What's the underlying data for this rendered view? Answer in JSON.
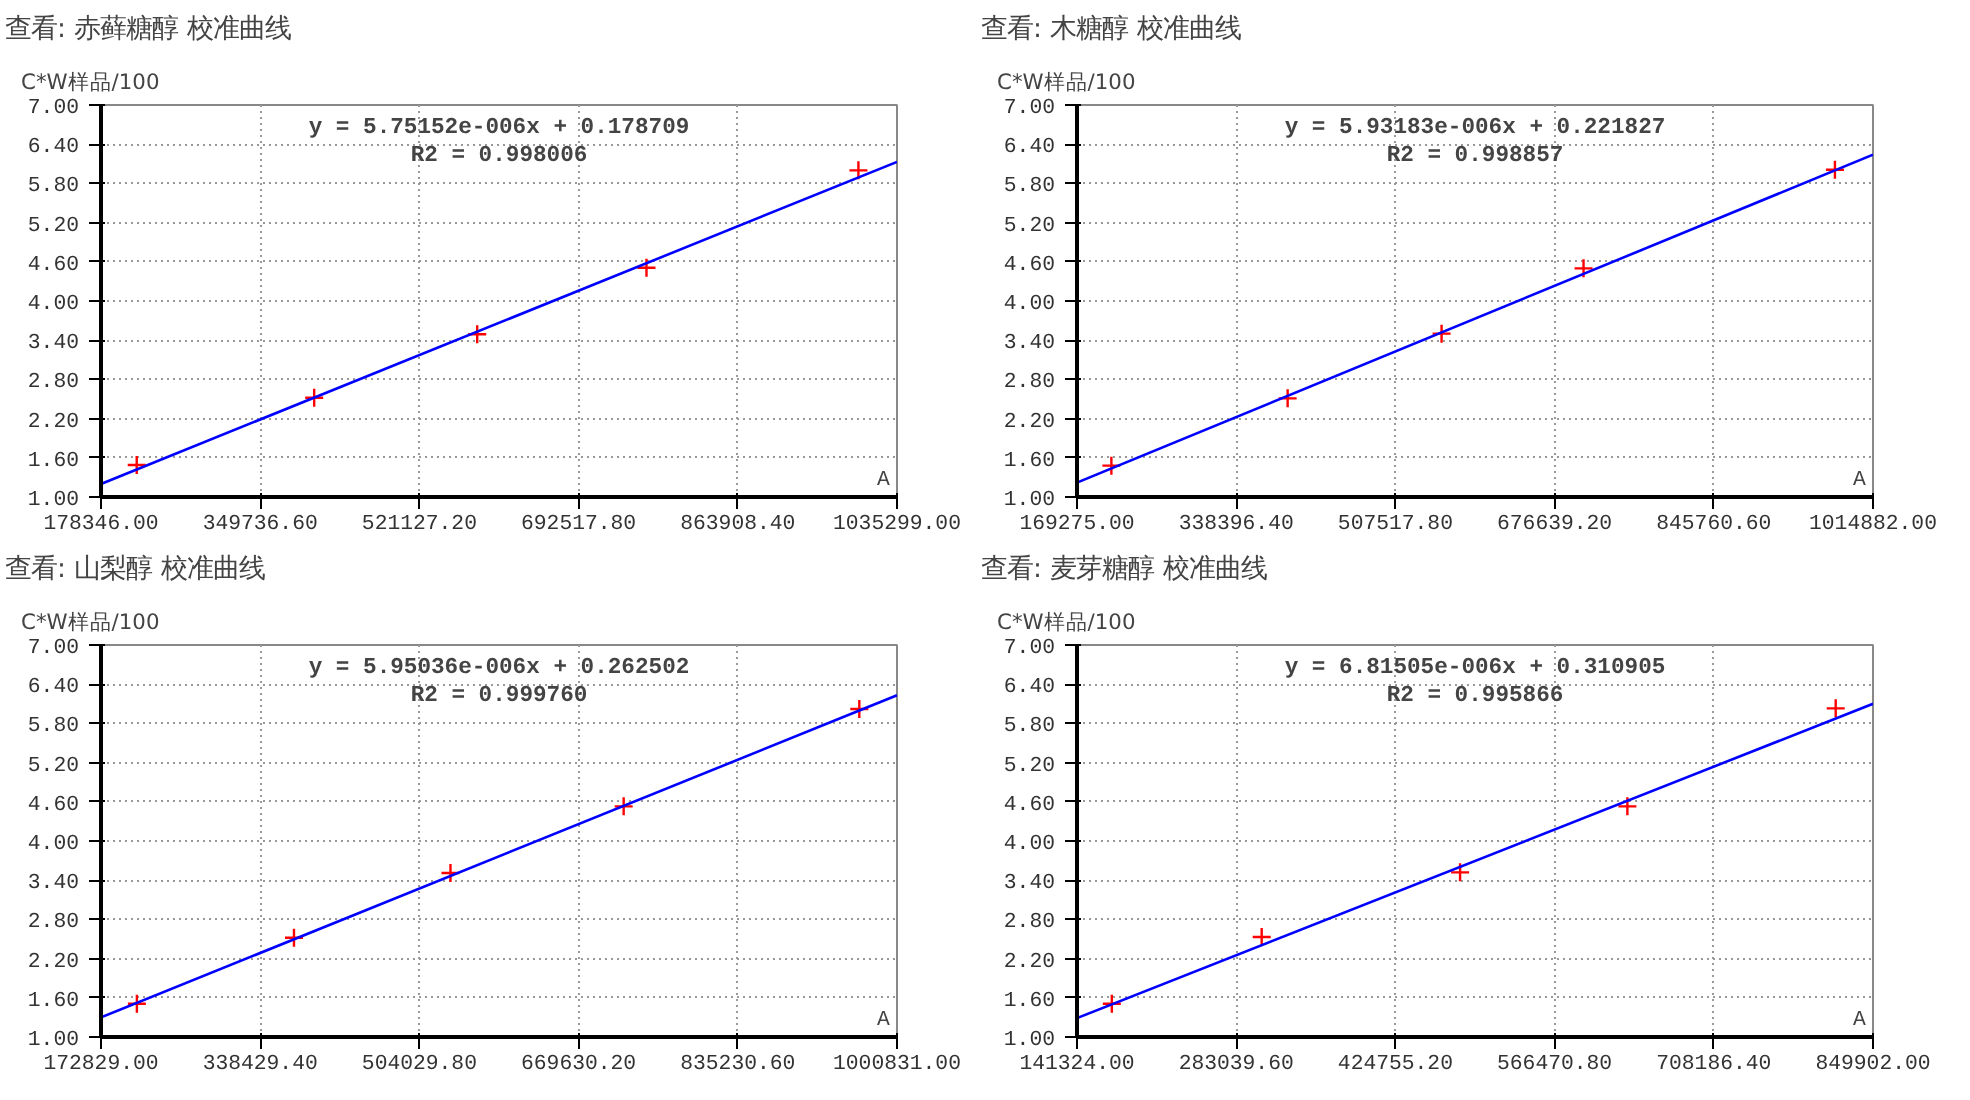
{
  "chart_data": [
    {
      "type": "scatter",
      "title": "查看: 赤藓糖醇 校准曲线",
      "ylabel": "C*W样品/100",
      "xlabel": "A",
      "annotations": [
        "y = 5.75152e-006x + 0.178709",
        "R2 = 0.998006"
      ],
      "marker": "cross",
      "grid": true,
      "xlim": [
        178346,
        1035299
      ],
      "ylim": [
        1,
        7
      ],
      "xticks": [
        {
          "value": 178346,
          "label": "178346.00"
        },
        {
          "value": 349736.6,
          "label": "349736.60"
        },
        {
          "value": 521127.2,
          "label": "521127.20"
        },
        {
          "value": 692517.8,
          "label": "692517.80"
        },
        {
          "value": 863908.4,
          "label": "863908.40"
        },
        {
          "value": 1035299,
          "label": "1035299.00"
        }
      ],
      "yticks": [
        {
          "value": 1,
          "label": "1.00"
        },
        {
          "value": 1.6,
          "label": "1.60"
        },
        {
          "value": 2.2,
          "label": "2.20"
        },
        {
          "value": 2.8,
          "label": "2.80"
        },
        {
          "value": 3.4,
          "label": "3.40"
        },
        {
          "value": 4,
          "label": "4.00"
        },
        {
          "value": 4.6,
          "label": "4.60"
        },
        {
          "value": 5.2,
          "label": "5.20"
        },
        {
          "value": 5.8,
          "label": "5.80"
        },
        {
          "value": 6.4,
          "label": "6.40"
        },
        {
          "value": 7,
          "label": "7.00"
        }
      ],
      "series": [
        {
          "color": "#ff0000",
          "x": [
            216800,
            407850,
            583350,
            765600,
            993750
          ],
          "values": [
            1.49,
            2.52,
            3.49,
            4.51,
            6.0
          ]
        },
        {
          "type": "line",
          "color": "#0000ff",
          "marker": "none",
          "x": [
            178346,
            1035299
          ],
          "values": [
            1.2,
            6.13
          ]
        }
      ]
    },
    {
      "type": "scatter",
      "title": "查看: 木糖醇 校准曲线",
      "ylabel": "C*W样品/100",
      "xlabel": "A",
      "annotations": [
        "y = 5.93183e-006x + 0.221827",
        "R2 = 0.998857"
      ],
      "marker": "cross",
      "grid": true,
      "xlim": [
        169275,
        1014882
      ],
      "ylim": [
        1,
        7
      ],
      "xticks": [
        {
          "value": 169275,
          "label": "169275.00"
        },
        {
          "value": 338396.4,
          "label": "338396.40"
        },
        {
          "value": 507517.8,
          "label": "507517.80"
        },
        {
          "value": 676639.2,
          "label": "676639.20"
        },
        {
          "value": 845760.6,
          "label": "845760.60"
        },
        {
          "value": 1014882,
          "label": "1014882.00"
        }
      ],
      "yticks": [
        {
          "value": 1,
          "label": "1.00"
        },
        {
          "value": 1.6,
          "label": "1.60"
        },
        {
          "value": 2.2,
          "label": "2.20"
        },
        {
          "value": 2.8,
          "label": "2.80"
        },
        {
          "value": 3.4,
          "label": "3.40"
        },
        {
          "value": 4,
          "label": "4.00"
        },
        {
          "value": 4.6,
          "label": "4.60"
        },
        {
          "value": 5.2,
          "label": "5.20"
        },
        {
          "value": 5.8,
          "label": "5.80"
        },
        {
          "value": 6.4,
          "label": "6.40"
        },
        {
          "value": 7,
          "label": "7.00"
        }
      ],
      "series": [
        {
          "color": "#ff0000",
          "x": [
            205800,
            393040,
            556580,
            707380,
            974440
          ],
          "values": [
            1.48,
            2.51,
            3.5,
            4.5,
            6.01
          ]
        },
        {
          "type": "line",
          "color": "#0000ff",
          "marker": "none",
          "x": [
            169275,
            1014882
          ],
          "values": [
            1.22,
            6.24
          ]
        }
      ]
    },
    {
      "type": "scatter",
      "title": "查看: 山梨醇 校准曲线",
      "ylabel": "C*W样品/100",
      "xlabel": "A",
      "annotations": [
        "y = 5.95036e-006x + 0.262502",
        "R2 = 0.999760"
      ],
      "marker": "cross",
      "grid": true,
      "xlim": [
        172829,
        1000831
      ],
      "ylim": [
        1,
        7
      ],
      "xticks": [
        {
          "value": 172829,
          "label": "172829.00"
        },
        {
          "value": 338429.4,
          "label": "338429.40"
        },
        {
          "value": 504029.8,
          "label": "504029.80"
        },
        {
          "value": 669630.2,
          "label": "669630.20"
        },
        {
          "value": 835230.6,
          "label": "835230.60"
        },
        {
          "value": 1000831,
          "label": "1000831.00"
        }
      ],
      "yticks": [
        {
          "value": 1,
          "label": "1.00"
        },
        {
          "value": 1.6,
          "label": "1.60"
        },
        {
          "value": 2.2,
          "label": "2.20"
        },
        {
          "value": 2.8,
          "label": "2.80"
        },
        {
          "value": 3.4,
          "label": "3.40"
        },
        {
          "value": 4,
          "label": "4.00"
        },
        {
          "value": 4.6,
          "label": "4.60"
        },
        {
          "value": 5.2,
          "label": "5.20"
        },
        {
          "value": 5.8,
          "label": "5.80"
        },
        {
          "value": 6.4,
          "label": "6.40"
        },
        {
          "value": 7,
          "label": "7.00"
        }
      ],
      "series": [
        {
          "color": "#ff0000",
          "x": [
            210150,
            373570,
            536350,
            716500,
            961630
          ],
          "values": [
            1.51,
            2.52,
            3.51,
            4.53,
            6.02
          ]
        },
        {
          "type": "line",
          "color": "#0000ff",
          "marker": "none",
          "x": [
            172829,
            1000831
          ],
          "values": [
            1.3,
            6.23
          ]
        }
      ]
    },
    {
      "type": "scatter",
      "title": "查看: 麦芽糖醇 校准曲线",
      "ylabel": "C*W样品/100",
      "xlabel": "A",
      "annotations": [
        "y = 6.81505e-006x + 0.310905",
        "R2 = 0.995866"
      ],
      "marker": "cross",
      "grid": true,
      "xlim": [
        141324,
        849902
      ],
      "ylim": [
        1,
        7
      ],
      "xticks": [
        {
          "value": 141324,
          "label": "141324.00"
        },
        {
          "value": 283039.6,
          "label": "283039.60"
        },
        {
          "value": 424755.2,
          "label": "424755.20"
        },
        {
          "value": 566470.8,
          "label": "566470.80"
        },
        {
          "value": 708186.4,
          "label": "708186.40"
        },
        {
          "value": 849902,
          "label": "849902.00"
        }
      ],
      "yticks": [
        {
          "value": 1,
          "label": "1.00"
        },
        {
          "value": 1.6,
          "label": "1.60"
        },
        {
          "value": 2.2,
          "label": "2.20"
        },
        {
          "value": 2.8,
          "label": "2.80"
        },
        {
          "value": 3.4,
          "label": "3.40"
        },
        {
          "value": 4,
          "label": "4.00"
        },
        {
          "value": 4.6,
          "label": "4.60"
        },
        {
          "value": 5.2,
          "label": "5.20"
        },
        {
          "value": 5.8,
          "label": "5.80"
        },
        {
          "value": 6.4,
          "label": "6.40"
        },
        {
          "value": 7,
          "label": "7.00"
        }
      ],
      "series": [
        {
          "color": "#ff0000",
          "x": [
            172330,
            305740,
            482340,
            631260,
            816700
          ],
          "values": [
            1.51,
            2.53,
            3.52,
            4.53,
            6.03
          ]
        },
        {
          "type": "line",
          "color": "#0000ff",
          "marker": "none",
          "x": [
            141324,
            849902
          ],
          "values": [
            1.29,
            6.1
          ]
        }
      ]
    }
  ]
}
